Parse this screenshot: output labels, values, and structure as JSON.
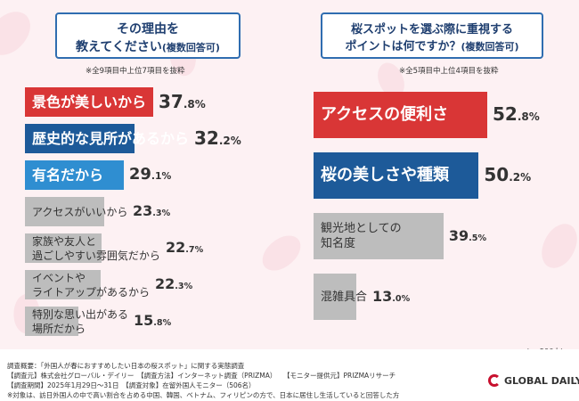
{
  "left": {
    "title_line1": "その理由を",
    "title_line2": "教えてください",
    "title_suffix": "(複数回答可)",
    "note": "※全9項目中上位7項目を抜粋"
  },
  "right": {
    "title_line1": "桜スポットを選ぶ際に重視する",
    "title_line2": "ポイントは何ですか？",
    "title_suffix": "(複数回答可)",
    "note": "※全5項目中上位4項目を抜粋"
  },
  "sample": "(n=506人)",
  "footer": {
    "line1": "調査概要：「外国人が春におすすめしたい日本の桜スポット」に関する実態調査",
    "line2a": "【調査元】株式会社グローバル・デイリー　【調査方法】インターネット調査（PRIZMA）",
    "line2b": "【モニター提供元】PRIZMAリサーチ",
    "line3": "【調査期間】2025年1月29日～31日　【調査対象】在留外国人モニター（506名）",
    "line4": "※対象は、訪日外国人の中で高い割合を占める中国、韓国、ベトナム、フィリピンの方で、日本に居住し生活していると回答した方"
  },
  "logo": "GLOBAL DAILY",
  "colors": {
    "red": "#d93636",
    "navy": "#1d5a99",
    "blue": "#2f8ed1",
    "gray": "#bdbdbd"
  },
  "chart_data": [
    {
      "type": "bar",
      "orientation": "horizontal",
      "unit": "%",
      "categories": [
        "景色が美しいから",
        "歴史的な見所があるから",
        "有名だから",
        "アクセスがいいから",
        "家族や友人と\n過ごしやすい雰囲気だから",
        "イベントや\nライトアップがあるから",
        "特別な思い出がある\n場所だから"
      ],
      "values": [
        37.8,
        32.2,
        29.1,
        23.3,
        22.7,
        22.3,
        15.8
      ],
      "value_labels": [
        "37.8%",
        "32.2%",
        "29.1%",
        "23.3%",
        "22.7%",
        "22.3%",
        "15.8%"
      ],
      "colors": [
        "red",
        "navy",
        "blue",
        "gray",
        "gray",
        "gray",
        "gray"
      ]
    },
    {
      "type": "bar",
      "orientation": "horizontal",
      "unit": "%",
      "categories": [
        "アクセスの便利さ",
        "桜の美しさや種類",
        "観光地としての\n知名度",
        "混雑具合"
      ],
      "values": [
        52.8,
        50.2,
        39.5,
        13.0
      ],
      "value_labels": [
        "52.8%",
        "50.2%",
        "39.5%",
        "13.0%"
      ],
      "colors": [
        "red",
        "navy",
        "gray",
        "gray"
      ]
    }
  ]
}
